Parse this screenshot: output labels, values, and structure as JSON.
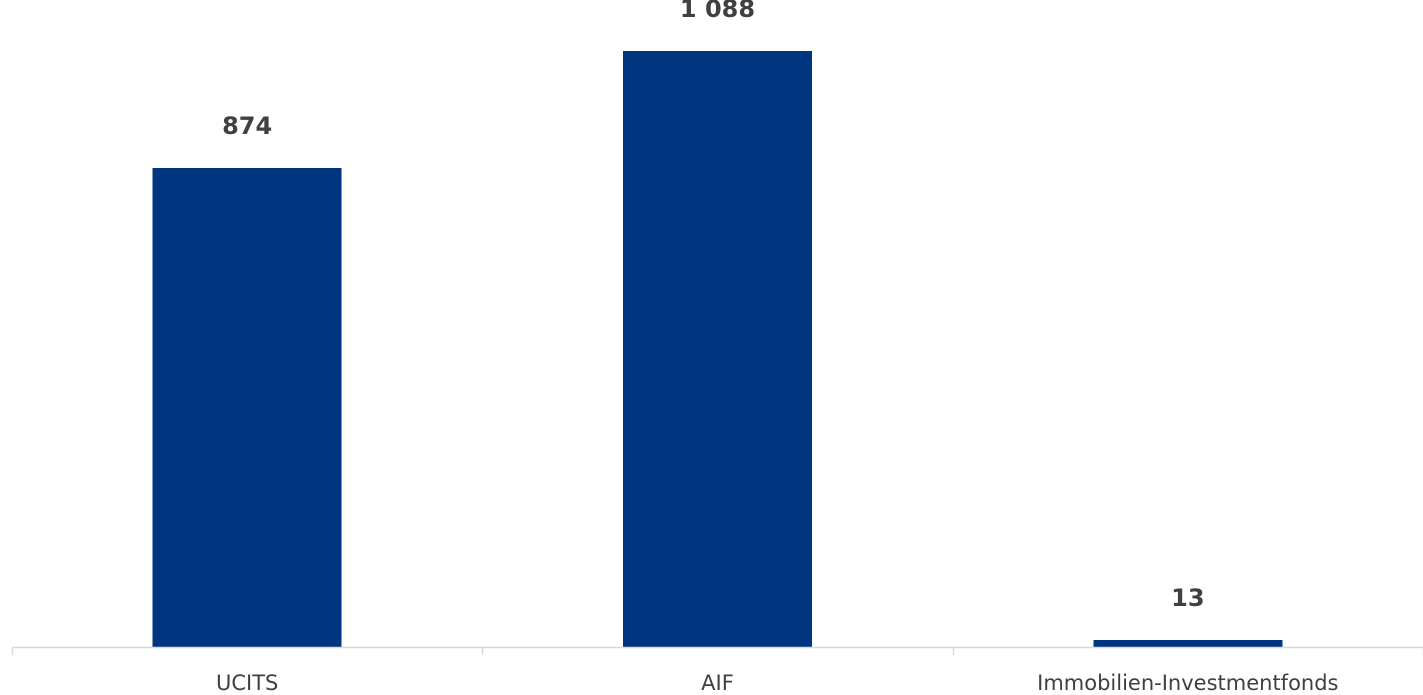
{
  "chart_data": {
    "type": "bar",
    "categories": [
      "UCITS",
      "AIF",
      "Immobilien-Investmentfonds"
    ],
    "values": [
      874,
      1088,
      13
    ],
    "value_labels": [
      "874",
      "1 088",
      "13"
    ],
    "ylim": [
      0,
      1130
    ],
    "grid": false,
    "legend": "none",
    "bar_color": "#003580",
    "label_color": "#404040",
    "axis_color": "#d9d9d9",
    "tick_label_color": "#404040"
  }
}
